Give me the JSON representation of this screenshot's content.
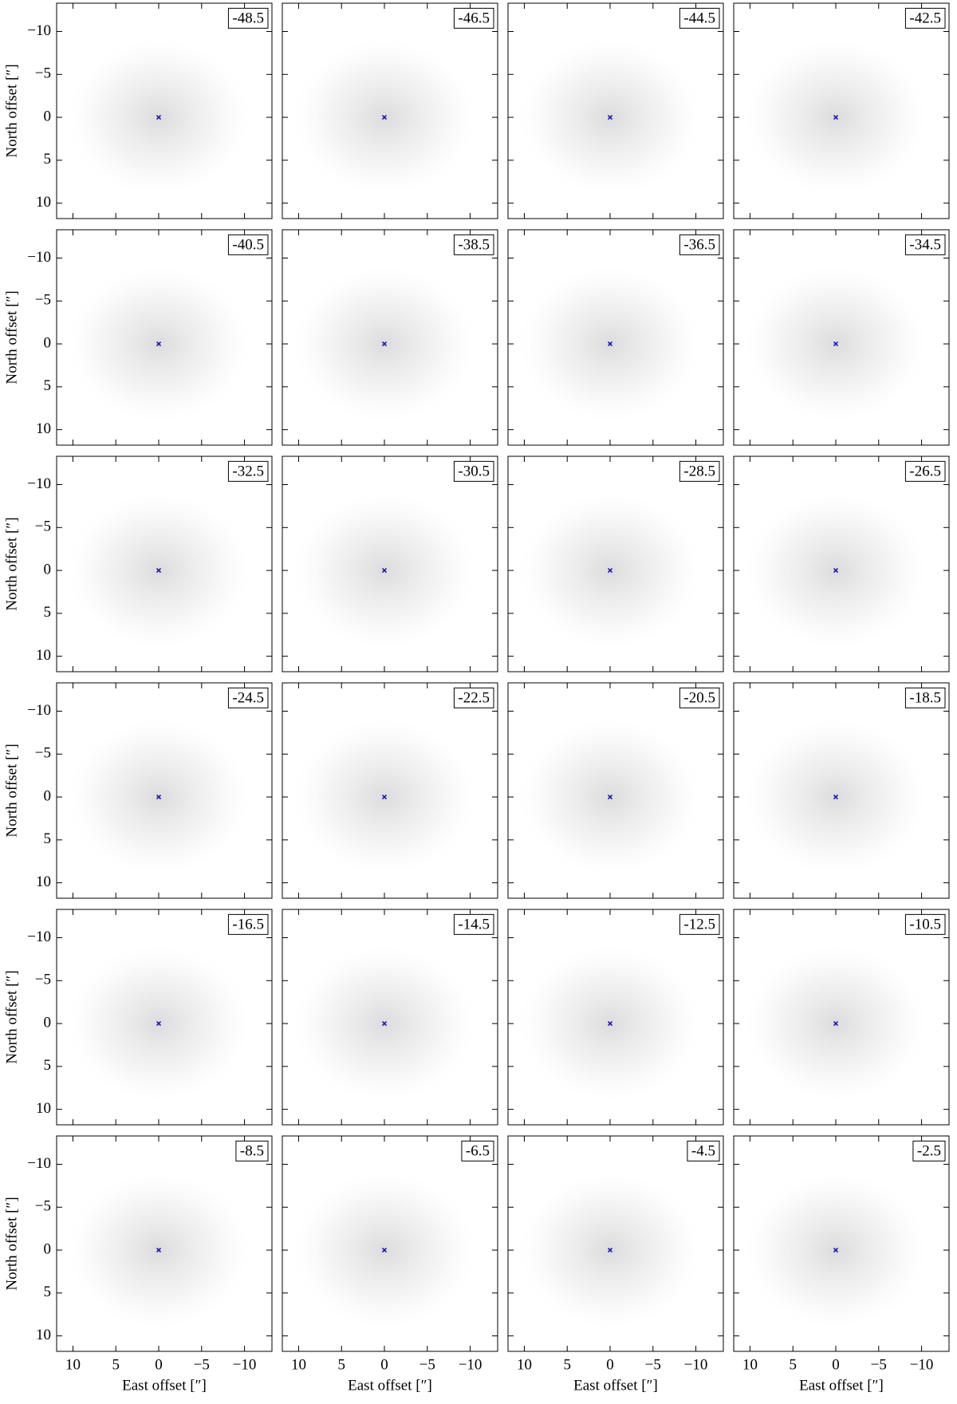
{
  "chart_data": {
    "type": "channel-map",
    "xlabel": "East offset [″]",
    "ylabel": "North offset [″]",
    "xlim": [
      11.9,
      -13.2
    ],
    "ylim": [
      -13.3,
      11.8
    ],
    "xticks": [
      10,
      5,
      0,
      {
        "value": -5,
        "label": "−5"
      },
      {
        "value": -10,
        "label": "−10"
      }
    ],
    "yticks": [
      {
        "value": -10,
        "label": "−10"
      },
      {
        "value": -5,
        "label": "−5"
      },
      0,
      5,
      10
    ],
    "columns": 4,
    "marker": {
      "x": 0,
      "y": 0,
      "color": "#1010c8"
    },
    "panels": [
      -48.5,
      -46.5,
      -44.5,
      -42.5,
      -40.5,
      -38.5,
      -36.5,
      -34.5,
      -32.5,
      -30.5,
      -28.5,
      -26.5,
      -24.5,
      -22.5,
      -20.5,
      -18.5,
      -16.5,
      -14.5,
      -12.5,
      -10.5,
      -8.5,
      -6.5,
      -4.5,
      -2.5
    ]
  }
}
